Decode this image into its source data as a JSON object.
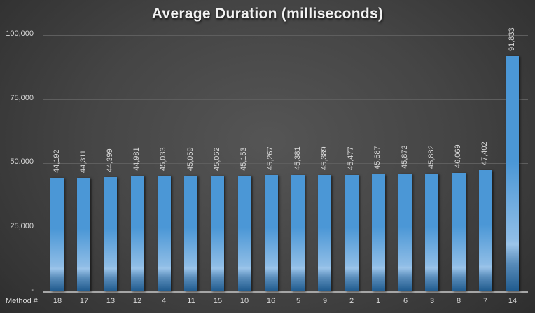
{
  "chart_data": {
    "type": "bar",
    "title": "Average Duration (milliseconds)",
    "xlabel": "Method #",
    "ylabel": "",
    "categories": [
      "18",
      "17",
      "13",
      "12",
      "4",
      "11",
      "15",
      "10",
      "16",
      "5",
      "9",
      "2",
      "1",
      "6",
      "3",
      "8",
      "7",
      "14"
    ],
    "values": [
      44192,
      44311,
      44399,
      44981,
      45033,
      45059,
      45062,
      45153,
      45267,
      45381,
      45389,
      45477,
      45687,
      45872,
      45882,
      46069,
      47402,
      91833
    ],
    "data_labels": [
      "44,192",
      "44,311",
      "44,399",
      "44,981",
      "45,033",
      "45,059",
      "45,062",
      "45,153",
      "45,267",
      "45,381",
      "45,389",
      "45,477",
      "45,687",
      "45,872",
      "45,882",
      "46,069",
      "47,402",
      "91,833"
    ],
    "ylim": [
      0,
      100000
    ],
    "yticks": [
      0,
      25000,
      50000,
      75000,
      100000
    ],
    "ytick_labels": [
      "-",
      "25,000",
      "50,000",
      "75,000",
      "100,000"
    ],
    "grid": true,
    "legend": null,
    "colors": {
      "bar": "#4b97d6",
      "bar_bottom": "#1f5a8d",
      "background": "#454545",
      "gridline": "#5e5e5e",
      "text": "#d9d9d9"
    }
  }
}
